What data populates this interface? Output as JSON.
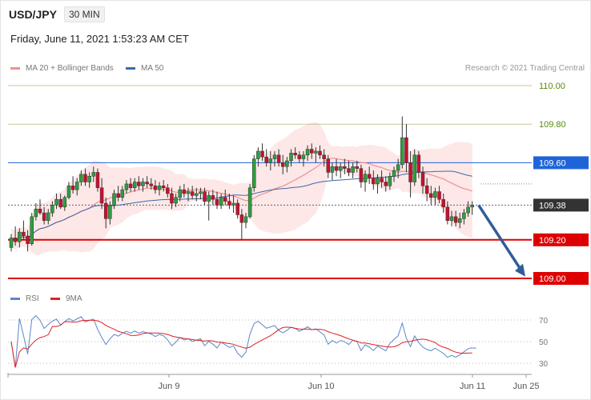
{
  "header": {
    "symbol": "USD/JPY",
    "timeframe": "30 MIN",
    "date": "Friday, June 11, 2021 1:53:23 AM CET"
  },
  "legend": {
    "ma20": {
      "label": "MA 20 + Bollinger Bands",
      "color": "#f08f8f"
    },
    "ma50": {
      "label": "MA 50",
      "color": "#3a6aa8"
    }
  },
  "credit": "Research © 2021 Trading Central",
  "chart_data": [
    {
      "type": "candlestick",
      "title": "",
      "ylim": [
        108.98,
        110.02
      ],
      "x_ticks": [
        "Jun 9",
        "Jun 10",
        "Jun 11",
        "Jun 25"
      ],
      "levels": [
        {
          "value": 110.0,
          "label": "110.00",
          "role": "target",
          "color": "#9aab4f"
        },
        {
          "value": 109.8,
          "label": "109.80",
          "role": "target",
          "color": "#9aab4f"
        },
        {
          "value": 109.6,
          "label": "109.60",
          "role": "pivot",
          "color": "#1e64d8"
        },
        {
          "value": 109.38,
          "label": "109.38",
          "role": "last",
          "color": "#333333"
        },
        {
          "value": 109.2,
          "label": "109.20",
          "role": "support",
          "color": "#dd0000"
        },
        {
          "value": 109.0,
          "label": "109.00",
          "role": "support",
          "color": "#dd0000"
        }
      ],
      "bars": [
        [
          109.16,
          109.23,
          109.14,
          109.21
        ],
        [
          109.21,
          109.27,
          109.17,
          109.19
        ],
        [
          109.19,
          109.26,
          109.16,
          109.24
        ],
        [
          109.24,
          109.3,
          109.2,
          109.22
        ],
        [
          109.22,
          109.25,
          109.14,
          109.18
        ],
        [
          109.18,
          109.34,
          109.17,
          109.32
        ],
        [
          109.32,
          109.39,
          109.3,
          109.36
        ],
        [
          109.36,
          109.41,
          109.33,
          109.34
        ],
        [
          109.34,
          109.37,
          109.28,
          109.3
        ],
        [
          109.3,
          109.36,
          109.28,
          109.34
        ],
        [
          109.34,
          109.4,
          109.32,
          109.38
        ],
        [
          109.38,
          109.44,
          109.36,
          109.41
        ],
        [
          109.41,
          109.44,
          109.36,
          109.37
        ],
        [
          109.37,
          109.43,
          109.35,
          109.42
        ],
        [
          109.42,
          109.5,
          109.41,
          109.48
        ],
        [
          109.48,
          109.53,
          109.44,
          109.46
        ],
        [
          109.46,
          109.52,
          109.43,
          109.5
        ],
        [
          109.5,
          109.56,
          109.48,
          109.54
        ],
        [
          109.54,
          109.57,
          109.48,
          109.5
        ],
        [
          109.5,
          109.55,
          109.47,
          109.53
        ],
        [
          109.53,
          109.58,
          109.5,
          109.55
        ],
        [
          109.55,
          109.57,
          109.45,
          109.47
        ],
        [
          109.47,
          109.52,
          109.36,
          109.39
        ],
        [
          109.39,
          109.42,
          109.26,
          109.31
        ],
        [
          109.31,
          109.4,
          109.28,
          109.38
        ],
        [
          109.38,
          109.46,
          109.36,
          109.44
        ],
        [
          109.44,
          109.48,
          109.4,
          109.42
        ],
        [
          109.42,
          109.48,
          109.4,
          109.46
        ],
        [
          109.46,
          109.51,
          109.44,
          109.49
        ],
        [
          109.49,
          109.52,
          109.45,
          109.47
        ],
        [
          109.47,
          109.52,
          109.45,
          109.5
        ],
        [
          109.5,
          109.53,
          109.46,
          109.48
        ],
        [
          109.48,
          109.52,
          109.45,
          109.5
        ],
        [
          109.5,
          109.53,
          109.47,
          109.49
        ],
        [
          109.49,
          109.52,
          109.46,
          109.48
        ],
        [
          109.48,
          109.51,
          109.44,
          109.46
        ],
        [
          109.46,
          109.5,
          109.43,
          109.48
        ],
        [
          109.48,
          109.51,
          109.45,
          109.47
        ],
        [
          109.47,
          109.49,
          109.42,
          109.44
        ],
        [
          109.44,
          109.47,
          109.36,
          109.39
        ],
        [
          109.39,
          109.44,
          109.37,
          109.42
        ],
        [
          109.42,
          109.48,
          109.4,
          109.46
        ],
        [
          109.46,
          109.49,
          109.42,
          109.44
        ],
        [
          109.44,
          109.47,
          109.4,
          109.45
        ],
        [
          109.45,
          109.48,
          109.41,
          109.43
        ],
        [
          109.43,
          109.47,
          109.4,
          109.44
        ],
        [
          109.44,
          109.47,
          109.41,
          109.45
        ],
        [
          109.45,
          109.47,
          109.38,
          109.4
        ],
        [
          109.4,
          109.45,
          109.3,
          109.43
        ],
        [
          109.43,
          109.46,
          109.38,
          109.41
        ],
        [
          109.41,
          109.45,
          109.36,
          109.38
        ],
        [
          109.38,
          109.44,
          109.36,
          109.42
        ],
        [
          109.42,
          109.46,
          109.38,
          109.4
        ],
        [
          109.4,
          109.44,
          109.36,
          109.38
        ],
        [
          109.38,
          109.43,
          109.34,
          109.39
        ],
        [
          109.39,
          109.41,
          109.31,
          109.33
        ],
        [
          109.33,
          109.36,
          109.2,
          109.29
        ],
        [
          109.29,
          109.34,
          109.26,
          109.32
        ],
        [
          109.32,
          109.49,
          109.31,
          109.47
        ],
        [
          109.47,
          109.64,
          109.45,
          109.62
        ],
        [
          109.62,
          109.68,
          109.58,
          109.66
        ],
        [
          109.66,
          109.7,
          109.61,
          109.63
        ],
        [
          109.63,
          109.67,
          109.58,
          109.6
        ],
        [
          109.6,
          109.66,
          109.56,
          109.62
        ],
        [
          109.62,
          109.66,
          109.58,
          109.64
        ],
        [
          109.64,
          109.67,
          109.58,
          109.6
        ],
        [
          109.6,
          109.64,
          109.54,
          109.58
        ],
        [
          109.58,
          109.63,
          109.55,
          109.61
        ],
        [
          109.61,
          109.67,
          109.58,
          109.65
        ],
        [
          109.65,
          109.68,
          109.62,
          109.64
        ],
        [
          109.64,
          109.66,
          109.6,
          109.62
        ],
        [
          109.62,
          109.66,
          109.58,
          109.64
        ],
        [
          109.64,
          109.69,
          109.61,
          109.67
        ],
        [
          109.67,
          109.7,
          109.62,
          109.65
        ],
        [
          109.65,
          109.68,
          109.6,
          109.66
        ],
        [
          109.66,
          109.69,
          109.62,
          109.64
        ],
        [
          109.64,
          109.67,
          109.58,
          109.62
        ],
        [
          109.62,
          109.64,
          109.52,
          109.55
        ],
        [
          109.55,
          109.6,
          109.51,
          109.58
        ],
        [
          109.58,
          109.62,
          109.53,
          109.56
        ],
        [
          109.56,
          109.6,
          109.52,
          109.58
        ],
        [
          109.58,
          109.62,
          109.54,
          109.57
        ],
        [
          109.57,
          109.61,
          109.53,
          109.55
        ],
        [
          109.55,
          109.6,
          109.52,
          109.58
        ],
        [
          109.58,
          109.61,
          109.55,
          109.57
        ],
        [
          109.57,
          109.59,
          109.47,
          109.5
        ],
        [
          109.5,
          109.56,
          109.45,
          109.54
        ],
        [
          109.54,
          109.58,
          109.49,
          109.52
        ],
        [
          109.52,
          109.56,
          109.46,
          109.49
        ],
        [
          109.49,
          109.54,
          109.44,
          109.52
        ],
        [
          109.52,
          109.56,
          109.47,
          109.5
        ],
        [
          109.5,
          109.53,
          109.45,
          109.48
        ],
        [
          109.48,
          109.55,
          109.46,
          109.53
        ],
        [
          109.53,
          109.58,
          109.5,
          109.56
        ],
        [
          109.56,
          109.62,
          109.52,
          109.59
        ],
        [
          109.59,
          109.84,
          109.57,
          109.73
        ],
        [
          109.73,
          109.8,
          109.55,
          109.6
        ],
        [
          109.6,
          109.66,
          109.42,
          109.5
        ],
        [
          109.5,
          109.67,
          109.48,
          109.64
        ],
        [
          109.64,
          109.66,
          109.52,
          109.55
        ],
        [
          109.55,
          109.58,
          109.44,
          109.48
        ],
        [
          109.48,
          109.52,
          109.4,
          109.44
        ],
        [
          109.44,
          109.48,
          109.38,
          109.42
        ],
        [
          109.42,
          109.47,
          109.38,
          109.45
        ],
        [
          109.45,
          109.48,
          109.39,
          109.41
        ],
        [
          109.41,
          109.44,
          109.34,
          109.37
        ],
        [
          109.37,
          109.4,
          109.28,
          109.3
        ],
        [
          109.3,
          109.35,
          109.27,
          109.32
        ],
        [
          109.32,
          109.35,
          109.27,
          109.29
        ],
        [
          109.29,
          109.34,
          109.26,
          109.31
        ],
        [
          109.31,
          109.36,
          109.28,
          109.34
        ],
        [
          109.34,
          109.4,
          109.32,
          109.37
        ],
        [
          109.37,
          109.4,
          109.33,
          109.38
        ]
      ]
    },
    {
      "type": "line",
      "title": "",
      "ylim": [
        25,
        75
      ],
      "y_ticks": [
        30,
        50,
        70
      ],
      "series": [
        {
          "name": "RSI",
          "color": "#5a87c9"
        },
        {
          "name": "9MA",
          "color": "#dd2222"
        }
      ]
    }
  ],
  "rsi_legend": {
    "rsi": {
      "label": "RSI",
      "color": "#5a87c9"
    },
    "ma9": {
      "label": "9MA",
      "color": "#dd2222"
    }
  }
}
